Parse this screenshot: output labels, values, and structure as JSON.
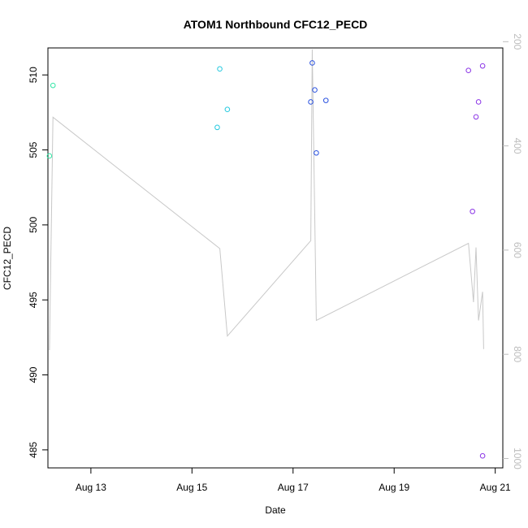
{
  "chart_data": {
    "type": "scatter",
    "title": "ATOM1 Northbound CFC12_PECD",
    "xlabel": "Date",
    "ylabel": "CFC12_PECD",
    "x_ticks": [
      "Aug 13",
      "Aug 15",
      "Aug 17",
      "Aug 19",
      "Aug 21"
    ],
    "x_tick_days": [
      13,
      15,
      17,
      19,
      21
    ],
    "xlim": [
      12.15,
      21.15
    ],
    "ylim": [
      483.8,
      511.8
    ],
    "y_ticks": [
      485,
      490,
      495,
      500,
      505,
      510
    ],
    "right_axis": {
      "ticks": [
        200,
        400,
        600,
        800,
        1000
      ],
      "lim": [
        212,
        1018
      ],
      "color": "#bdbdbd"
    },
    "grid": false,
    "legend": "none",
    "points": [
      {
        "x": 12.18,
        "y": 504.6,
        "color": "#33e6a6"
      },
      {
        "x": 12.25,
        "y": 509.3,
        "color": "#33e6a6"
      },
      {
        "x": 15.5,
        "y": 506.5,
        "color": "#25c9df"
      },
      {
        "x": 15.55,
        "y": 510.4,
        "color": "#25c9df"
      },
      {
        "x": 15.7,
        "y": 507.7,
        "color": "#25c9df"
      },
      {
        "x": 17.35,
        "y": 508.2,
        "color": "#2a52e0"
      },
      {
        "x": 17.38,
        "y": 510.8,
        "color": "#2a52e0"
      },
      {
        "x": 17.43,
        "y": 509.0,
        "color": "#2a52e0"
      },
      {
        "x": 17.46,
        "y": 504.8,
        "color": "#2a52e0"
      },
      {
        "x": 17.65,
        "y": 508.3,
        "color": "#2a52e0"
      },
      {
        "x": 20.47,
        "y": 510.3,
        "color": "#8a33e6"
      },
      {
        "x": 20.55,
        "y": 500.9,
        "color": "#8a33e6"
      },
      {
        "x": 20.62,
        "y": 507.2,
        "color": "#8a33e6"
      },
      {
        "x": 20.67,
        "y": 508.2,
        "color": "#8a33e6"
      },
      {
        "x": 20.75,
        "y": 510.6,
        "color": "#8a33e6"
      },
      {
        "x": 20.75,
        "y": 484.6,
        "color": "#8a33e6"
      }
    ],
    "line_series": {
      "axis": "right",
      "color": "#c8c8c8",
      "x": [
        12.18,
        12.25,
        15.55,
        15.7,
        17.35,
        17.38,
        17.46,
        20.47,
        20.57,
        20.62,
        20.67,
        20.75,
        20.77
      ],
      "y": [
        792,
        345,
        597,
        765,
        582,
        215,
        735,
        587,
        700,
        595,
        735,
        680,
        790
      ]
    }
  }
}
